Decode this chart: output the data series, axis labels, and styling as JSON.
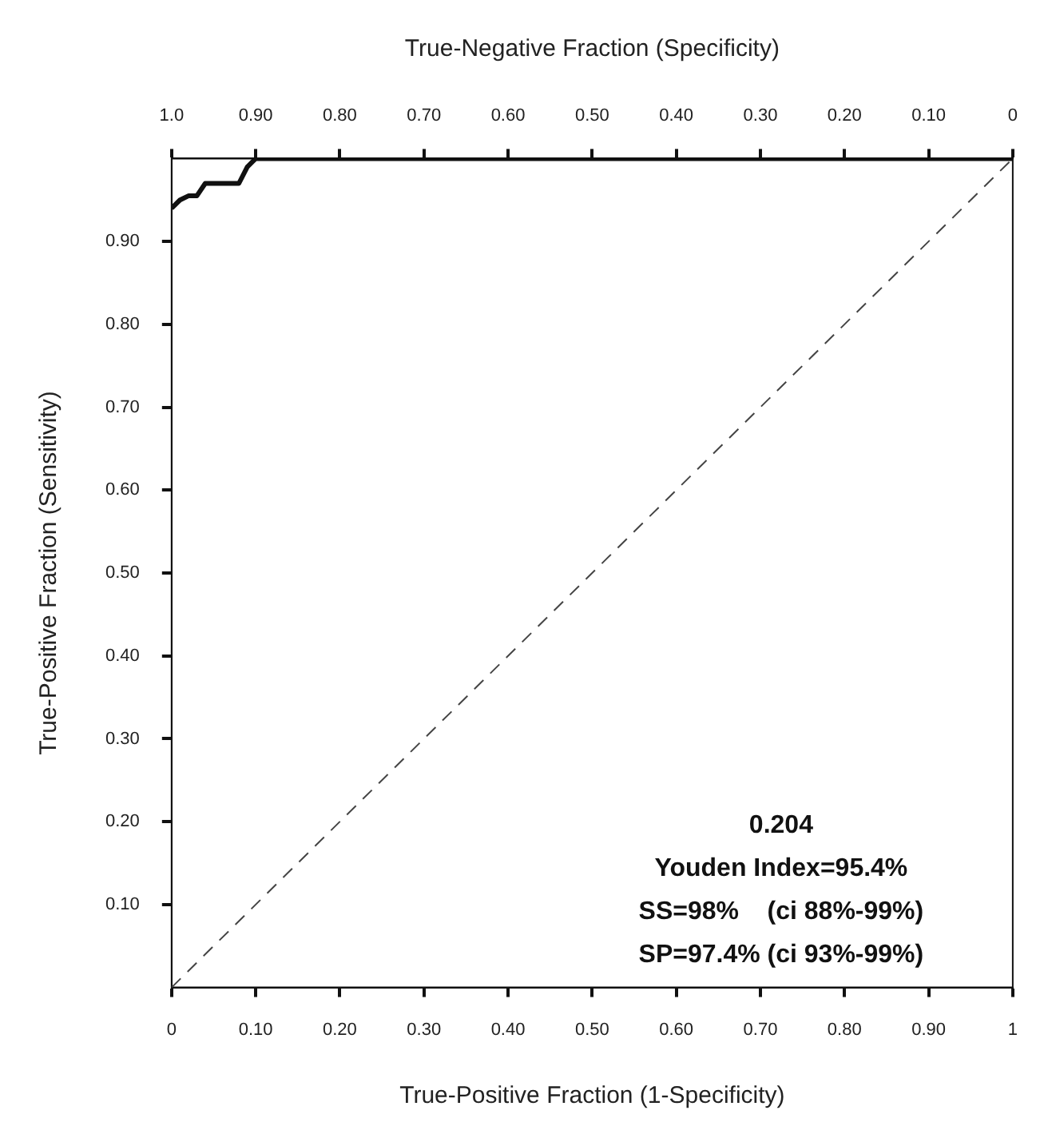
{
  "chart_data": {
    "type": "line",
    "x2label": "True-Negative Fraction (Specificity)",
    "xlabel": "True-Positive Fraction (1-Specificity)",
    "ylabel": "True-Positive Fraction (Sensitivity)",
    "xlim": [
      0,
      1
    ],
    "xticks": [
      0,
      {
        "value": 0.1,
        "label": "0.10"
      },
      {
        "value": 0.2,
        "label": "0.20"
      },
      {
        "value": 0.3,
        "label": "0.30"
      },
      {
        "value": 0.4,
        "label": "0.40"
      },
      {
        "value": 0.5,
        "label": "0.50"
      },
      {
        "value": 0.6,
        "label": "0.60"
      },
      {
        "value": 0.7,
        "label": "0.70"
      },
      {
        "value": 0.8,
        "label": "0.80"
      },
      {
        "value": 0.9,
        "label": "0.90"
      },
      1
    ],
    "x2lim": [
      1,
      0
    ],
    "x2ticks": [
      {
        "value": 1,
        "label": "1.0"
      },
      {
        "value": 0.9,
        "label": "0.90"
      },
      {
        "value": 0.8,
        "label": "0.80"
      },
      {
        "value": 0.7,
        "label": "0.70"
      },
      {
        "value": 0.6,
        "label": "0.60"
      },
      {
        "value": 0.5,
        "label": "0.50"
      },
      {
        "value": 0.4,
        "label": "0.40"
      },
      {
        "value": 0.3,
        "label": "0.30"
      },
      {
        "value": 0.2,
        "label": "0.20"
      },
      {
        "value": 0.1,
        "label": "0.10"
      },
      0
    ],
    "ylim": [
      0,
      1
    ],
    "yticks": [
      {
        "value": 0.1,
        "label": "0.10"
      },
      {
        "value": 0.2,
        "label": "0.20"
      },
      {
        "value": 0.3,
        "label": "0.30"
      },
      {
        "value": 0.4,
        "label": "0.40"
      },
      {
        "value": 0.5,
        "label": "0.50"
      },
      {
        "value": 0.6,
        "label": "0.60"
      },
      {
        "value": 0.7,
        "label": "0.70"
      },
      {
        "value": 0.8,
        "label": "0.80"
      },
      {
        "value": 0.9,
        "label": "0.90"
      }
    ],
    "marker": "none",
    "legend": false,
    "series": [
      {
        "color": "#111111",
        "line_style": "solid",
        "x": [
          0,
          0.01,
          0.02,
          0.03,
          0.04,
          0.08,
          0.09,
          0.1,
          1
        ],
        "values": [
          0.94,
          0.95,
          0.955,
          0.955,
          0.97,
          0.97,
          0.99,
          1,
          1
        ]
      },
      {
        "color": "#444444",
        "line_style": "dashed",
        "x": [
          0,
          1
        ],
        "values": [
          0,
          1
        ]
      }
    ],
    "annotations": [
      "0.204",
      "Youden Index=95.4%",
      "SS=98%    (ci 88%-99%)",
      "SP=97.4% (ci 93%-99%)"
    ]
  }
}
